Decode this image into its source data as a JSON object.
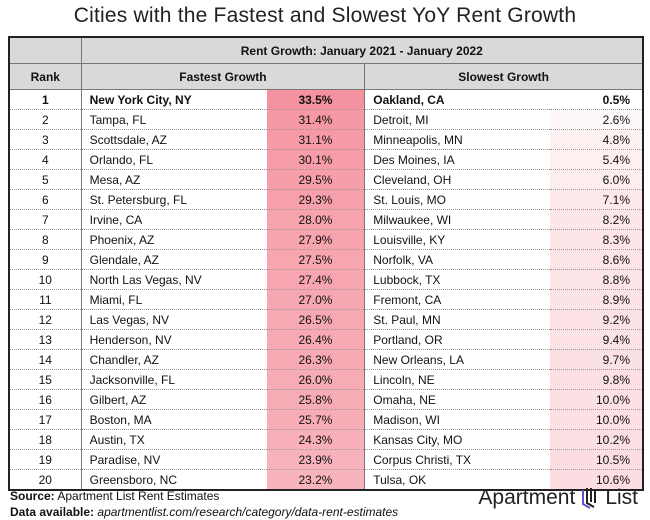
{
  "chart_data": {
    "type": "table",
    "title": "Cities with the Fastest and Slowest YoY Rent Growth",
    "group_header": "Rent Growth: January 2021 - January 2022",
    "columns": [
      "Rank",
      "Fastest Growth",
      "Slowest Growth"
    ],
    "rows": [
      {
        "rank": 1,
        "fast_city": "New York City, NY",
        "fast": 33.5,
        "slow_city": "Oakland, CA",
        "slow": 0.5
      },
      {
        "rank": 2,
        "fast_city": "Tampa, FL",
        "fast": 31.4,
        "slow_city": "Detroit, MI",
        "slow": 2.6
      },
      {
        "rank": 3,
        "fast_city": "Scottsdale, AZ",
        "fast": 31.1,
        "slow_city": "Minneapolis, MN",
        "slow": 4.8
      },
      {
        "rank": 4,
        "fast_city": "Orlando, FL",
        "fast": 30.1,
        "slow_city": "Des Moines, IA",
        "slow": 5.4
      },
      {
        "rank": 5,
        "fast_city": "Mesa, AZ",
        "fast": 29.5,
        "slow_city": "Cleveland, OH",
        "slow": 6.0
      },
      {
        "rank": 6,
        "fast_city": "St. Petersburg, FL",
        "fast": 29.3,
        "slow_city": "St. Louis, MO",
        "slow": 7.1
      },
      {
        "rank": 7,
        "fast_city": "Irvine, CA",
        "fast": 28.0,
        "slow_city": "Milwaukee, WI",
        "slow": 8.2
      },
      {
        "rank": 8,
        "fast_city": "Phoenix, AZ",
        "fast": 27.9,
        "slow_city": "Louisville, KY",
        "slow": 8.3
      },
      {
        "rank": 9,
        "fast_city": "Glendale, AZ",
        "fast": 27.5,
        "slow_city": "Norfolk, VA",
        "slow": 8.6
      },
      {
        "rank": 10,
        "fast_city": "North Las Vegas, NV",
        "fast": 27.4,
        "slow_city": "Lubbock, TX",
        "slow": 8.8
      },
      {
        "rank": 11,
        "fast_city": "Miami, FL",
        "fast": 27.0,
        "slow_city": "Fremont, CA",
        "slow": 8.9
      },
      {
        "rank": 12,
        "fast_city": "Las Vegas, NV",
        "fast": 26.5,
        "slow_city": "St. Paul, MN",
        "slow": 9.2
      },
      {
        "rank": 13,
        "fast_city": "Henderson, NV",
        "fast": 26.4,
        "slow_city": "Portland, OR",
        "slow": 9.4
      },
      {
        "rank": 14,
        "fast_city": "Chandler, AZ",
        "fast": 26.3,
        "slow_city": "New Orleans, LA",
        "slow": 9.7
      },
      {
        "rank": 15,
        "fast_city": "Jacksonville, FL",
        "fast": 26.0,
        "slow_city": "Lincoln, NE",
        "slow": 9.8
      },
      {
        "rank": 16,
        "fast_city": "Gilbert, AZ",
        "fast": 25.8,
        "slow_city": "Omaha, NE",
        "slow": 10.0
      },
      {
        "rank": 17,
        "fast_city": "Boston, MA",
        "fast": 25.7,
        "slow_city": "Madison, WI",
        "slow": 10.0
      },
      {
        "rank": 18,
        "fast_city": "Austin, TX",
        "fast": 24.3,
        "slow_city": "Kansas City, MO",
        "slow": 10.2
      },
      {
        "rank": 19,
        "fast_city": "Paradise, NV",
        "fast": 23.9,
        "slow_city": "Corpus Christi, TX",
        "slow": 10.5
      },
      {
        "rank": 20,
        "fast_city": "Greensboro, NC",
        "fast": 23.2,
        "slow_city": "Tulsa, OK",
        "slow": 10.6
      }
    ],
    "heat_color": "#f5929f"
  },
  "footer": {
    "source_label": "Source:",
    "source_text": "Apartment List Rent Estimates",
    "data_label": "Data available:",
    "data_text": "apartmentlist.com/research/category/data-rent-estimates"
  },
  "logo": {
    "text_left": "Apartment",
    "text_right": "List"
  }
}
